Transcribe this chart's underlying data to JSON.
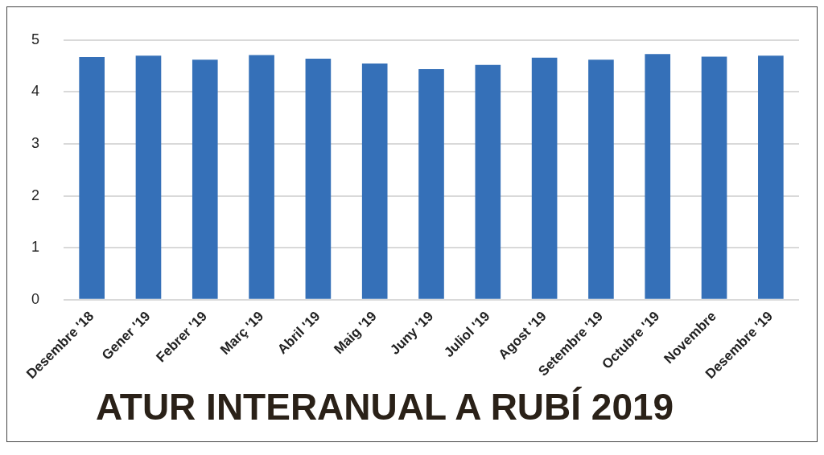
{
  "chart_data": {
    "type": "bar",
    "title": "ATUR INTERANUAL A RUBÍ 2019",
    "categories": [
      "Desembre '18",
      "Gener '19",
      "Febrer '19",
      "Març '19",
      "Abril '19",
      "Maig '19",
      "Juny '19",
      "Juliol '19",
      "Agost '19",
      "Setembre '19",
      "Octubre '19",
      "Novembre",
      "Desembre '19"
    ],
    "values": [
      4.67,
      4.7,
      4.62,
      4.71,
      4.64,
      4.55,
      4.44,
      4.52,
      4.66,
      4.62,
      4.73,
      4.68,
      4.7
    ],
    "color": "#3570b8",
    "ylim": [
      0,
      5
    ],
    "yticks": [
      0,
      1,
      2,
      3,
      4,
      5
    ],
    "grid": "y",
    "legend": false
  }
}
